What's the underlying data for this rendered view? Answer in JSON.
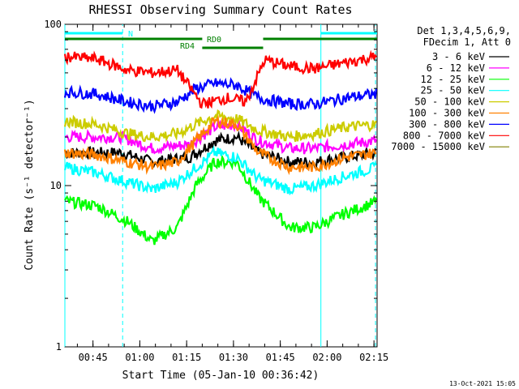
{
  "chart_data": {
    "type": "line",
    "title": "RHESSI Observing Summary Count Rates",
    "xlabel": "Start Time (05-Jan-10 00:36:42)",
    "ylabel": "Count Rate (s⁻¹ detector⁻¹)",
    "yscale": "log",
    "ylim": [
      1,
      100
    ],
    "xlim_minutes_after_0036": [
      0,
      100
    ],
    "x_ticks": [
      "00:45",
      "01:00",
      "01:15",
      "01:30",
      "01:45",
      "02:00",
      "02:15"
    ],
    "y_ticks": [
      "1",
      "10",
      "100"
    ],
    "legend_header": [
      "Det 1,3,4,5,6,9,",
      "FDecim 1, Att 0"
    ],
    "legend_position": "right, outside plot",
    "series": [
      {
        "name": "3 - 6 keV",
        "color": "#000000",
        "points": [
          [
            0,
            16
          ],
          [
            18,
            16
          ],
          [
            28,
            14
          ],
          [
            40,
            15
          ],
          [
            48,
            19
          ],
          [
            55,
            20
          ],
          [
            62,
            16
          ],
          [
            72,
            14
          ],
          [
            80,
            14
          ],
          [
            90,
            15
          ],
          [
            100,
            16
          ]
        ]
      },
      {
        "name": "6 - 12 keV",
        "color": "#ff00ff",
        "points": [
          [
            0,
            20
          ],
          [
            18,
            20
          ],
          [
            28,
            17
          ],
          [
            40,
            18
          ],
          [
            48,
            23
          ],
          [
            55,
            24
          ],
          [
            62,
            19
          ],
          [
            72,
            17
          ],
          [
            80,
            17
          ],
          [
            90,
            18
          ],
          [
            100,
            19
          ]
        ]
      },
      {
        "name": "12 - 25 keV",
        "color": "#00ff00",
        "points": [
          [
            0,
            8
          ],
          [
            10,
            7.5
          ],
          [
            20,
            6
          ],
          [
            28,
            4.5
          ],
          [
            36,
            5.5
          ],
          [
            42,
            10
          ],
          [
            48,
            14
          ],
          [
            55,
            14
          ],
          [
            62,
            8.5
          ],
          [
            72,
            5.5
          ],
          [
            80,
            5.5
          ],
          [
            88,
            6.5
          ],
          [
            100,
            8
          ]
        ]
      },
      {
        "name": "25 - 50 keV",
        "color": "#00ffff",
        "points": [
          [
            0,
            13
          ],
          [
            10,
            12
          ],
          [
            20,
            10.5
          ],
          [
            28,
            9.5
          ],
          [
            36,
            10.5
          ],
          [
            42,
            13
          ],
          [
            48,
            16
          ],
          [
            55,
            15
          ],
          [
            62,
            11
          ],
          [
            72,
            9.5
          ],
          [
            80,
            10
          ],
          [
            90,
            11.5
          ],
          [
            100,
            13
          ]
        ]
      },
      {
        "name": "50 - 100 keV",
        "color": "#cccc00",
        "points": [
          [
            0,
            25
          ],
          [
            10,
            24
          ],
          [
            20,
            21
          ],
          [
            28,
            20
          ],
          [
            36,
            21
          ],
          [
            42,
            24
          ],
          [
            48,
            27
          ],
          [
            55,
            26
          ],
          [
            62,
            22
          ],
          [
            72,
            20
          ],
          [
            80,
            21
          ],
          [
            90,
            23
          ],
          [
            100,
            24
          ]
        ]
      },
      {
        "name": "100 - 300 keV",
        "color": "#ff8000",
        "points": [
          [
            0,
            16
          ],
          [
            10,
            15.5
          ],
          [
            20,
            14
          ],
          [
            28,
            13
          ],
          [
            36,
            14
          ],
          [
            42,
            19
          ],
          [
            48,
            25
          ],
          [
            55,
            24
          ],
          [
            62,
            16
          ],
          [
            72,
            13
          ],
          [
            80,
            13
          ],
          [
            90,
            15
          ],
          [
            100,
            16
          ]
        ]
      },
      {
        "name": "300 - 800 keV",
        "color": "#0000ff",
        "points": [
          [
            0,
            38
          ],
          [
            10,
            37
          ],
          [
            20,
            33
          ],
          [
            28,
            31
          ],
          [
            36,
            33
          ],
          [
            42,
            40
          ],
          [
            48,
            43
          ],
          [
            55,
            42
          ],
          [
            62,
            35
          ],
          [
            72,
            32
          ],
          [
            80,
            32
          ],
          [
            90,
            35
          ],
          [
            100,
            37
          ]
        ]
      },
      {
        "name": "800 - 7000 keV",
        "color": "#ff0000",
        "points": [
          [
            0,
            63
          ],
          [
            10,
            61
          ],
          [
            20,
            52
          ],
          [
            28,
            50
          ],
          [
            36,
            52
          ],
          [
            44,
            32
          ],
          [
            52,
            35
          ],
          [
            58,
            33
          ],
          [
            64,
            60
          ],
          [
            72,
            55
          ],
          [
            80,
            53
          ],
          [
            90,
            58
          ],
          [
            100,
            63
          ]
        ]
      },
      {
        "name": "7000 - 15000 keV",
        "color": "#808000",
        "points": []
      }
    ],
    "annotations": [
      {
        "text": "N",
        "color": "#00ffff"
      },
      {
        "text": "RD4",
        "color": "#008000"
      },
      {
        "text": "RD0",
        "color": "#008000"
      }
    ],
    "timestamp": "13-Oct-2021 15:05"
  }
}
